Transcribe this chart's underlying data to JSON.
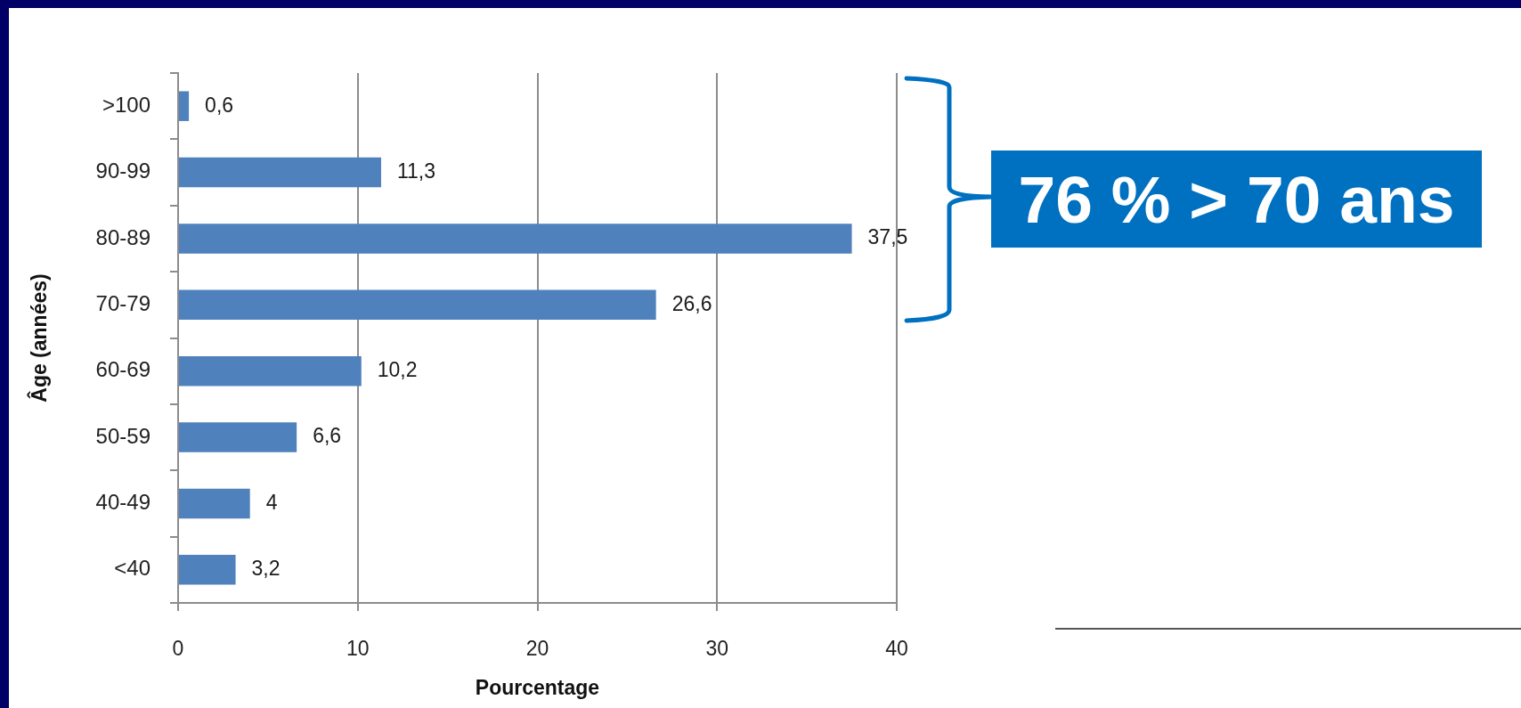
{
  "chart_data": {
    "type": "bar",
    "orientation": "horizontal",
    "categories": [
      ">100",
      "90-99",
      "80-89",
      "70-79",
      "60-69",
      "50-59",
      "40-49",
      "<40"
    ],
    "values": [
      0.6,
      11.3,
      37.5,
      26.6,
      10.2,
      6.6,
      4,
      3.2
    ],
    "value_labels": [
      "0,6",
      "11,3",
      "37,5",
      "26,6",
      "10,2",
      "6,6",
      "4",
      "3,2"
    ],
    "color": "#4f81bd",
    "xlim": [
      0,
      40
    ],
    "xticks": [
      0,
      10,
      20,
      30,
      40
    ],
    "xlabel": "Pourcentage",
    "ylabel": "Âge (années)",
    "grid": "x",
    "annotations": [
      "76 % > 70 ans"
    ]
  }
}
